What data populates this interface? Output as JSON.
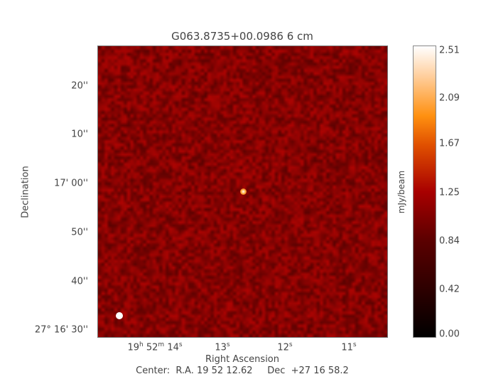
{
  "chart_data": {
    "type": "heatmap",
    "title": "G063.8735+00.0986 6 cm",
    "xlabel": "Right Ascension",
    "ylabel": "Declination",
    "x_ticks": [
      {
        "h": "19",
        "m": "52",
        "s": "14"
      },
      {
        "s": "13"
      },
      {
        "s": "12"
      },
      {
        "s": "11"
      }
    ],
    "y_ticks": [
      "20''",
      "10''",
      "17' 00''",
      "50''",
      "40''",
      "27° 16' 30''"
    ],
    "y_tick_deg": "27",
    "y_tick_rest": "16' 30''",
    "colorbar": {
      "label": "mJy/beam",
      "ticks": [
        "2.51",
        "2.09",
        "1.67",
        "1.25",
        "0.84",
        "0.42",
        "0.00"
      ],
      "range": [
        0,
        2.51
      ],
      "colormap": "heat (black-red-orange-white)"
    },
    "center_text": "Center:  R.A. 19 52 12.62     Dec  +27 16 58.2",
    "source": {
      "peak": 2.51,
      "note": "point source near center"
    },
    "beam_marker_color": "#ffffff"
  }
}
